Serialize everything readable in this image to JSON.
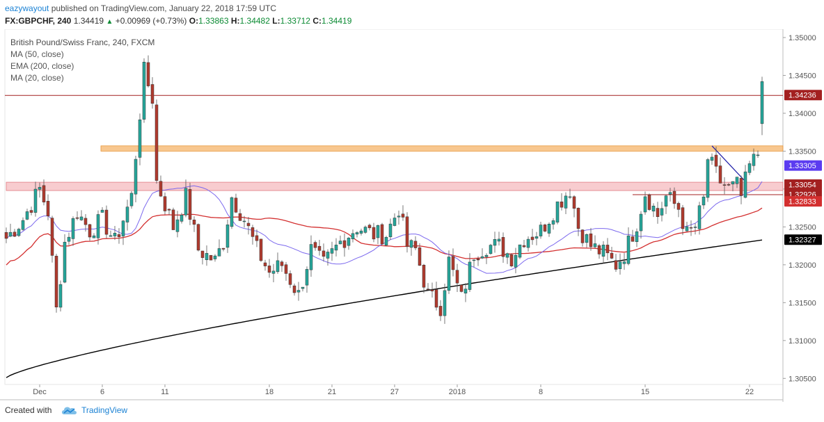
{
  "header": {
    "author": "eazywayout",
    "published_text": "published on TradingView.com, January 22, 2018 17:59 UTC",
    "symbol": "FX:GBPCHF, 240",
    "last": "1.34419",
    "change": "+0.00969 (+0.73%)",
    "o_label": "O:",
    "o_value": "1.33863",
    "h_label": "H:",
    "h_value": "1.34482",
    "l_label": "L:",
    "l_value": "1.33712",
    "c_label": "C:",
    "c_value": "1.34419"
  },
  "legend": {
    "title": "British Pound/Swiss Franc, 240, FXCM",
    "items": [
      "MA (50, close)",
      "EMA (200, close)",
      "MA (20, close)"
    ]
  },
  "footer": {
    "created_with": "Created with",
    "brand": "TradingView"
  },
  "colors": {
    "up": "#26a69a",
    "down": "#b03a2e",
    "ma50": "#d32f2f",
    "ema200": "#000000",
    "ma20": "#7b68ee",
    "resistance_zone": "#f5b46a",
    "support_zone": "#f2a3a8",
    "price_line": "#a32020"
  },
  "chart_data": {
    "type": "candlestick",
    "title": "British Pound/Swiss Franc, 240, FXCM",
    "ylim": [
      1.3042,
      1.3511
    ],
    "y_ticks": [
      "1.35000",
      "1.34500",
      "1.34000",
      "1.33500",
      "1.33000",
      "1.32500",
      "1.32000",
      "1.31500",
      "1.31000",
      "1.30500"
    ],
    "x_ticks": [
      {
        "label": "Dec",
        "i": 8
      },
      {
        "label": "6",
        "i": 23
      },
      {
        "label": "11",
        "i": 38
      },
      {
        "label": "18",
        "i": 63
      },
      {
        "label": "21",
        "i": 78
      },
      {
        "label": "27",
        "i": 93
      },
      {
        "label": "2018",
        "i": 108
      },
      {
        "label": "8",
        "i": 128
      },
      {
        "label": "15",
        "i": 153
      },
      {
        "label": "22",
        "i": 178
      }
    ],
    "n_candles": 182,
    "anchors": [
      [
        0,
        1.3235
      ],
      [
        4,
        1.326
      ],
      [
        8,
        1.33
      ],
      [
        10,
        1.327
      ],
      [
        12,
        1.314
      ],
      [
        14,
        1.323
      ],
      [
        17,
        1.327
      ],
      [
        20,
        1.3245
      ],
      [
        23,
        1.326
      ],
      [
        26,
        1.323
      ],
      [
        30,
        1.329
      ],
      [
        33,
        1.3455
      ],
      [
        35,
        1.342
      ],
      [
        36,
        1.331
      ],
      [
        38,
        1.328
      ],
      [
        40,
        1.325
      ],
      [
        43,
        1.329
      ],
      [
        46,
        1.322
      ],
      [
        50,
        1.3205
      ],
      [
        52,
        1.323
      ],
      [
        54,
        1.329
      ],
      [
        57,
        1.326
      ],
      [
        60,
        1.322
      ],
      [
        63,
        1.319
      ],
      [
        66,
        1.32
      ],
      [
        70,
        1.316
      ],
      [
        73,
        1.322
      ],
      [
        76,
        1.32
      ],
      [
        80,
        1.323
      ],
      [
        84,
        1.325
      ],
      [
        88,
        1.324
      ],
      [
        91,
        1.324
      ],
      [
        94,
        1.3275
      ],
      [
        96,
        1.3225
      ],
      [
        98,
        1.322
      ],
      [
        101,
        1.316
      ],
      [
        104,
        1.3145
      ],
      [
        106,
        1.3205
      ],
      [
        109,
        1.3155
      ],
      [
        112,
        1.3215
      ],
      [
        115,
        1.3225
      ],
      [
        118,
        1.3225
      ],
      [
        121,
        1.321
      ],
      [
        124,
        1.3235
      ],
      [
        128,
        1.3245
      ],
      [
        132,
        1.328
      ],
      [
        135,
        1.33
      ],
      [
        137,
        1.325
      ],
      [
        140,
        1.3225
      ],
      [
        143,
        1.3215
      ],
      [
        146,
        1.32
      ],
      [
        148,
        1.3215
      ],
      [
        151,
        1.3255
      ],
      [
        153,
        1.3295
      ],
      [
        156,
        1.3265
      ],
      [
        158,
        1.329
      ],
      [
        161,
        1.3275
      ],
      [
        163,
        1.324
      ],
      [
        165,
        1.325
      ],
      [
        167,
        1.3285
      ],
      [
        168,
        1.334
      ],
      [
        171,
        1.331
      ],
      [
        173,
        1.33
      ],
      [
        175,
        1.3305
      ],
      [
        176,
        1.329
      ],
      [
        178,
        1.333
      ],
      [
        180,
        1.3345
      ],
      [
        181,
        1.3345
      ],
      [
        182,
        1.339
      ],
      [
        183,
        1.3442
      ]
    ],
    "last_candle": {
      "open": 1.33863,
      "high": 1.34482,
      "low": 1.33712,
      "close": 1.34419
    },
    "price_labels": [
      {
        "value": "1.34236",
        "color": "#a32020"
      },
      {
        "value": "1.33305",
        "color": "#5b3cf0"
      },
      {
        "value": "1.33054",
        "color": "#a32020"
      },
      {
        "value": "1.32926",
        "color": "#a32020"
      },
      {
        "value": "1.32833",
        "color": "#d32f2f"
      },
      {
        "value": "1.32327",
        "color": "#000000"
      }
    ],
    "levels": {
      "resistance_zone": [
        1.335,
        1.3357
      ],
      "support_zone": [
        1.3298,
        1.3309
      ],
      "horizontal_line": 1.34236,
      "support_line": 1.32926
    },
    "trendline": [
      {
        "i": 169,
        "y": 1.3357
      },
      {
        "i": 177,
        "y": 1.331
      }
    ],
    "series": [
      {
        "name": "MA (50, close)",
        "color": "#d32f2f"
      },
      {
        "name": "EMA (200, close)",
        "color": "#000000"
      },
      {
        "name": "MA (20, close)",
        "color": "#7b68ee"
      }
    ]
  }
}
